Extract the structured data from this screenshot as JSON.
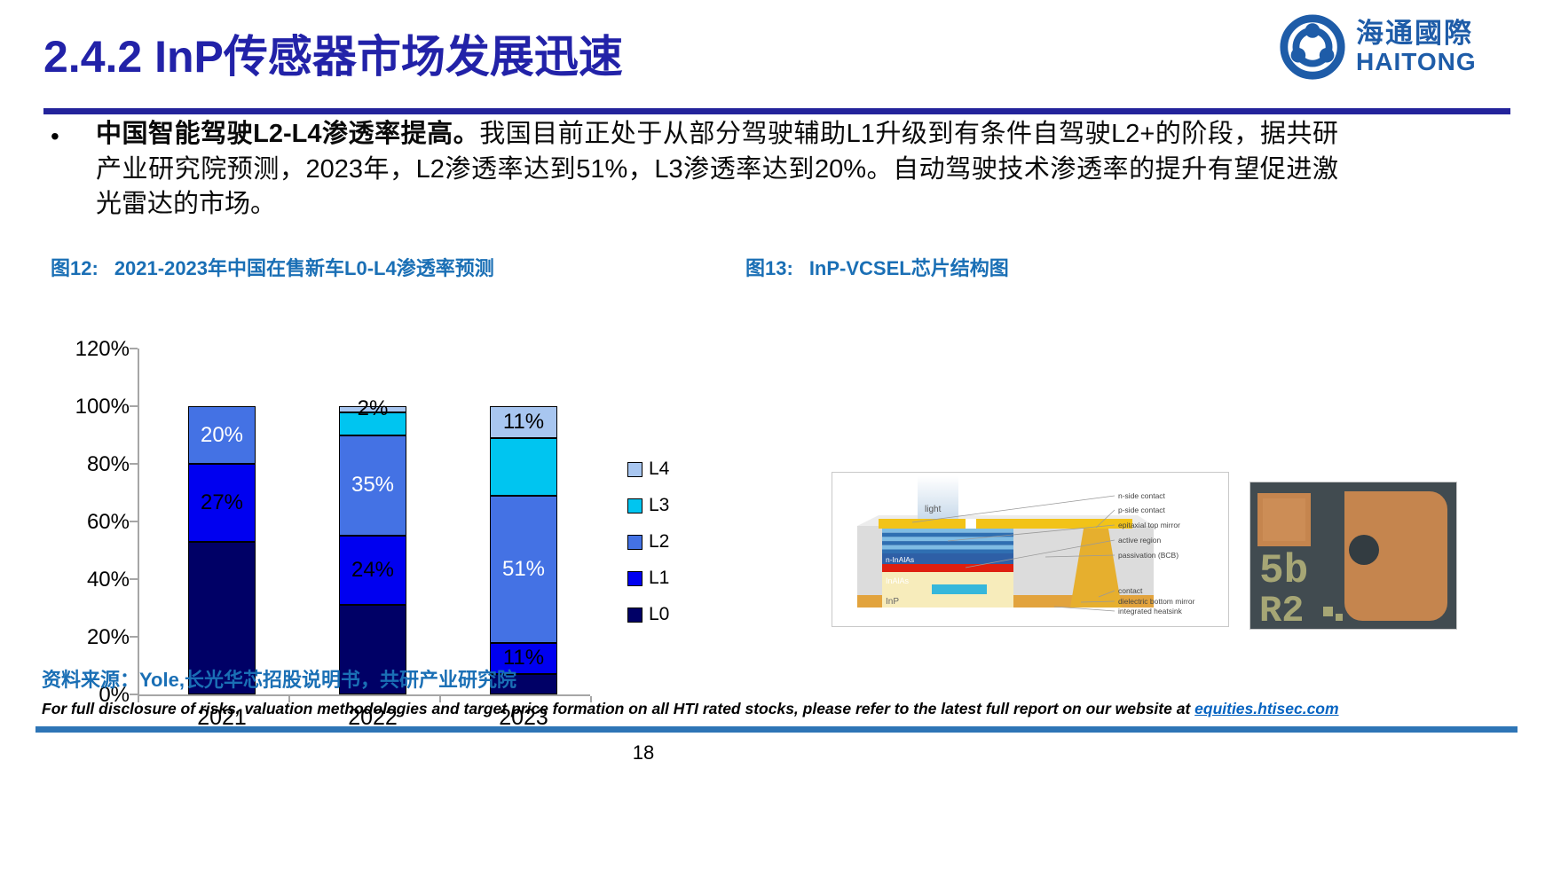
{
  "page": {
    "number": "18"
  },
  "header": {
    "title": "2.4.2 InP传感器市场发展迅速",
    "title_color": "#2222A8",
    "logo": {
      "zh": "海通國際",
      "en": "HAITONG",
      "color": "#1E5CA8"
    }
  },
  "bullet": {
    "marker": "•",
    "lead": "中国智能驾驶L2-L4渗透率提高。",
    "body": "我国目前正处于从部分驾驶辅助L1升级到有条件自驾驶L2+的阶段，据共研产业研究院预测，2023年，L2渗透率达到51%，L3渗透率达到20%。自动驾驶技术渗透率的提升有望促进激光雷达的市场。"
  },
  "figures": {
    "fig12_label": "图12:",
    "fig12_title": "2021-2023年中国在售新车L0-L4渗透率预测",
    "fig13_label": "图13:",
    "fig13_title": "InP-VCSEL芯片结构图",
    "caption_color": "#1A6FB5"
  },
  "chart_data": {
    "type": "bar",
    "stacked": true,
    "title": "2021-2023年中国在售新车L0-L4渗透率预测",
    "categories": [
      "2021",
      "2022",
      "2023"
    ],
    "series": [
      {
        "name": "L0",
        "color": "#000066",
        "label_color": "#000000",
        "values": [
          53,
          31,
          7
        ],
        "labels": [
          "",
          "",
          ""
        ]
      },
      {
        "name": "L1",
        "color": "#0000F0",
        "label_color": "#000000",
        "values": [
          27,
          24,
          11
        ],
        "labels": [
          "27%",
          "24%",
          "11%"
        ]
      },
      {
        "name": "L2",
        "color": "#4472E4",
        "label_color": "#FFFFFF",
        "values": [
          20,
          35,
          51
        ],
        "labels": [
          "20%",
          "35%",
          "51%"
        ]
      },
      {
        "name": "L3",
        "color": "#00C5F0",
        "label_color": "#000000",
        "values": [
          0,
          8,
          20
        ],
        "labels": [
          "",
          "",
          ""
        ]
      },
      {
        "name": "L4",
        "color": "#A8C6F0",
        "label_color": "#000000",
        "values": [
          0,
          2,
          11
        ],
        "labels": [
          "",
          "2%",
          "11%"
        ]
      }
    ],
    "ylim": [
      0,
      120
    ],
    "ytick_labels": [
      "0%",
      "20%",
      "40%",
      "60%",
      "80%",
      "100%",
      "120%"
    ],
    "legend_order": [
      "L4",
      "L3",
      "L2",
      "L1",
      "L0"
    ],
    "legend_position": "right",
    "grid": false
  },
  "vcsel_diagram": {
    "beam_label": "light",
    "layer_labels": [
      "n-InAlAs",
      "InAlAs",
      "InP"
    ],
    "callouts_top": [
      "n-side contact",
      "p-side contact",
      "epitaxial top mirror",
      "active region",
      "passivation (BCB)"
    ],
    "callouts_bottom": [
      "contact",
      "dielectric bottom mirror",
      "integrated heatsink"
    ]
  },
  "chip_photo": {
    "markings": [
      "5b",
      "R2"
    ]
  },
  "source": {
    "text": "资料来源：Yole,长光华芯招股说明书，共研产业研究院"
  },
  "footer": {
    "disclosure": "For full disclosure of risks, valuation methodologies and target price formation on all HTI rated stocks, please refer to the latest full report on our website at ",
    "link": "equities.htisec.com",
    "rule_color": "#2E75B6"
  }
}
